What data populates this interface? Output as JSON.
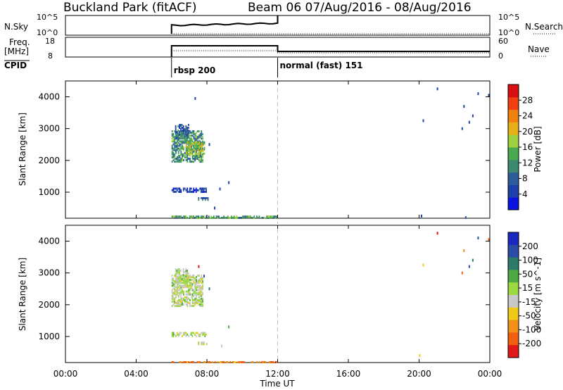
{
  "header": {
    "title": "Buckland Park (fitACF)",
    "subtitle": "Beam 06  07/Aug/2016 - 08/Aug/2016"
  },
  "strips": {
    "nsky": {
      "left_label": "N.Sky",
      "right_label": "N.Search",
      "left_ticks": [
        "10^5",
        "10^0"
      ],
      "right_ticks": [
        "10^5",
        "10^0"
      ]
    },
    "freq": {
      "left_label_1": "Freq.",
      "left_label_2": "[MHz]",
      "right_label": "Nave",
      "left_ticks": [
        "18",
        "8"
      ],
      "right_ticks": [
        "60",
        "0"
      ]
    },
    "cpid": {
      "label": "CPID",
      "modes": [
        "rbsp 200",
        "normal (fast) 151"
      ]
    }
  },
  "x_axis": {
    "label": "Time UT",
    "ticks": [
      "00:00",
      "04:00",
      "08:00",
      "12:00",
      "16:00",
      "20:00",
      "00:00"
    ],
    "ticks_hours": [
      0,
      4,
      8,
      12,
      16,
      20,
      24
    ]
  },
  "colors": {
    "power": [
      "#0a14e0",
      "#1e40a8",
      "#2e5c9a",
      "#3c8a6e",
      "#4aa850",
      "#9cd03c",
      "#e8b018",
      "#f08010",
      "#f04010",
      "#d81010"
    ],
    "velocity": [
      "#1a28c0",
      "#2a4ca8",
      "#2c7a6a",
      "#4ca840",
      "#9cd840",
      "#c8c8c8",
      "#f0c818",
      "#f09018",
      "#f06010",
      "#e01818"
    ]
  },
  "chart_data": [
    {
      "type": "heatmap",
      "name": "power",
      "xlabel": "",
      "ylabel": "Slant Range [km]",
      "xlim": [
        0,
        24
      ],
      "ylim": [
        180,
        4500
      ],
      "yticks": [
        1000,
        2000,
        3000,
        4000
      ],
      "colorbar": {
        "label": "Power [dB]",
        "ticks": [
          4,
          8,
          12,
          16,
          20,
          24,
          28
        ],
        "range": [
          0,
          32
        ]
      },
      "echo_regions": [
        {
          "t0": 6.0,
          "t1": 7.8,
          "r0": 1950,
          "r1": 2950,
          "value": 12
        },
        {
          "t0": 6.8,
          "t1": 7.9,
          "r0": 2200,
          "r1": 2600,
          "value": 17
        },
        {
          "t0": 6.2,
          "t1": 7.0,
          "r0": 2700,
          "r1": 3150,
          "value": 8
        },
        {
          "t0": 6.0,
          "t1": 8.0,
          "r0": 1000,
          "r1": 1150,
          "value": 5
        },
        {
          "t0": 7.5,
          "t1": 8.1,
          "r0": 750,
          "r1": 850,
          "value": 9
        },
        {
          "t0": 6.0,
          "t1": 12.0,
          "r0": 180,
          "r1": 260,
          "value": 13
        }
      ],
      "sparse_points": [
        {
          "t": 8.1,
          "r": 2500,
          "value": 4
        },
        {
          "t": 8.7,
          "r": 1100,
          "value": 4
        },
        {
          "t": 9.2,
          "r": 1300,
          "value": 6
        },
        {
          "t": 7.3,
          "r": 3950,
          "value": 5
        },
        {
          "t": 8.4,
          "r": 500,
          "value": 6
        },
        {
          "t": 20.1,
          "r": 250,
          "value": 6
        },
        {
          "t": 20.2,
          "r": 3250,
          "value": 6
        },
        {
          "t": 21.0,
          "r": 4250,
          "value": 6
        },
        {
          "t": 22.5,
          "r": 3700,
          "value": 5
        },
        {
          "t": 22.4,
          "r": 3000,
          "value": 6
        },
        {
          "t": 23.0,
          "r": 3400,
          "value": 5
        },
        {
          "t": 23.3,
          "r": 4100,
          "value": 6
        },
        {
          "t": 23.9,
          "r": 4050,
          "value": 6
        },
        {
          "t": 22.8,
          "r": 3200,
          "value": 5
        },
        {
          "t": 22.6,
          "r": 200,
          "value": 7
        }
      ]
    },
    {
      "type": "heatmap",
      "name": "velocity",
      "xlabel": "Time UT",
      "ylabel": "Slant Range [km]",
      "xlim": [
        0,
        24
      ],
      "ylim": [
        180,
        4500
      ],
      "yticks": [
        1000,
        2000,
        3000,
        4000
      ],
      "colorbar": {
        "label": "Velocity [m s^-1]",
        "ticks": [
          200,
          100,
          50,
          15,
          -15,
          -50,
          -100,
          -200
        ],
        "range": [
          -250,
          250
        ]
      },
      "echo_regions": [
        {
          "t0": 6.0,
          "t1": 7.8,
          "r0": 1950,
          "r1": 2950,
          "value": 0
        },
        {
          "t0": 6.2,
          "t1": 7.0,
          "r0": 2700,
          "r1": 3150,
          "value": 0
        },
        {
          "t0": 6.0,
          "t1": 8.0,
          "r0": 1000,
          "r1": 1150,
          "value": 0
        },
        {
          "t0": 7.5,
          "t1": 8.1,
          "r0": 750,
          "r1": 850,
          "value": 0
        },
        {
          "t0": 6.0,
          "t1": 12.0,
          "r0": 180,
          "r1": 240,
          "value": -150
        }
      ],
      "sparse_points": [
        {
          "t": 8.1,
          "r": 2500,
          "value": 120
        },
        {
          "t": 7.5,
          "r": 3200,
          "value": -230
        },
        {
          "t": 7.8,
          "r": 2900,
          "value": 150
        },
        {
          "t": 6.5,
          "r": 2100,
          "value": -80
        },
        {
          "t": 9.2,
          "r": 1300,
          "value": 100
        },
        {
          "t": 8.8,
          "r": 700,
          "value": -30
        },
        {
          "t": 20.2,
          "r": 3250,
          "value": -60
        },
        {
          "t": 21.0,
          "r": 4250,
          "value": -230
        },
        {
          "t": 22.5,
          "r": 3700,
          "value": -120
        },
        {
          "t": 22.4,
          "r": 3000,
          "value": -150
        },
        {
          "t": 23.0,
          "r": 3400,
          "value": 120
        },
        {
          "t": 23.3,
          "r": 4100,
          "value": 160
        },
        {
          "t": 23.9,
          "r": 4050,
          "value": -180
        },
        {
          "t": 22.8,
          "r": 3200,
          "value": 180
        },
        {
          "t": 20.0,
          "r": 400,
          "value": -60
        }
      ]
    }
  ],
  "status": {
    "nsky_level": "high",
    "freq_mhz": [
      15,
      11
    ],
    "mode_change_hour": 12
  }
}
